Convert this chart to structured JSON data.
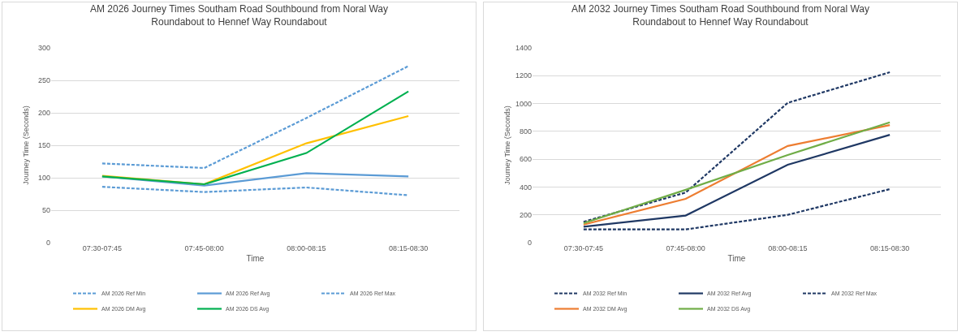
{
  "chart_data": [
    {
      "type": "line",
      "title": "AM 2026 Journey Times Southam Road Southbound from Noral Way Roundabout to Hennef Way Roundabout",
      "xlabel": "Time",
      "ylabel": "Journey Time (Seconds)",
      "categories": [
        "07:30-07:45",
        "07:45-08:00",
        "08:00-08:15",
        "08:15-08:30"
      ],
      "ylim": [
        0,
        300
      ],
      "yticks": [
        0,
        50,
        100,
        150,
        200,
        250,
        300
      ],
      "grid": "y",
      "legend": "bottom",
      "marker": "none",
      "series": [
        {
          "name": "AM 2026 Ref Min",
          "color": "#5b9bd5",
          "line_style": "dashed",
          "values": [
            86,
            78,
            85,
            73
          ]
        },
        {
          "name": "AM 2026 Ref Avg",
          "color": "#5b9bd5",
          "line_style": "solid",
          "values": [
            102,
            88,
            107,
            102
          ]
        },
        {
          "name": "AM 2026 Ref Max",
          "color": "#5b9bd5",
          "line_style": "dashed",
          "values": [
            122,
            115,
            192,
            272
          ]
        },
        {
          "name": "AM 2026 DM Avg",
          "color": "#ffc000",
          "line_style": "solid",
          "values": [
            103,
            90,
            153,
            195
          ]
        },
        {
          "name": "AM 2026 DS Avg",
          "color": "#00b050",
          "line_style": "solid",
          "values": [
            102,
            90,
            138,
            233
          ]
        }
      ]
    },
    {
      "type": "line",
      "title": "AM 2032 Journey Times Southam Road Southbound from Noral Way Roundabout to Hennef Way Roundabout",
      "xlabel": "Time",
      "ylabel": "Journey Time (Seconds)",
      "categories": [
        "07:30-07:45",
        "07:45-08:00",
        "08:00-08:15",
        "08:15-08:30"
      ],
      "ylim": [
        0,
        1400
      ],
      "yticks": [
        0,
        200,
        400,
        600,
        800,
        1000,
        1200,
        1400
      ],
      "grid": "y",
      "legend": "bottom",
      "marker": "none",
      "series": [
        {
          "name": "AM 2032 Ref Min",
          "color": "#1f3864",
          "line_style": "dashed",
          "values": [
            95,
            95,
            200,
            385
          ]
        },
        {
          "name": "AM 2032 Ref Avg",
          "color": "#1f3864",
          "line_style": "solid",
          "values": [
            115,
            195,
            560,
            775
          ]
        },
        {
          "name": "AM 2032 Ref Max",
          "color": "#1f3864",
          "line_style": "dashed",
          "values": [
            150,
            360,
            1005,
            1225
          ]
        },
        {
          "name": "AM 2032 DM Avg",
          "color": "#ed7d31",
          "line_style": "solid",
          "values": [
            130,
            315,
            695,
            845
          ]
        },
        {
          "name": "AM 2032 DS Avg",
          "color": "#70ad47",
          "line_style": "solid",
          "values": [
            140,
            380,
            630,
            865
          ]
        }
      ]
    }
  ]
}
